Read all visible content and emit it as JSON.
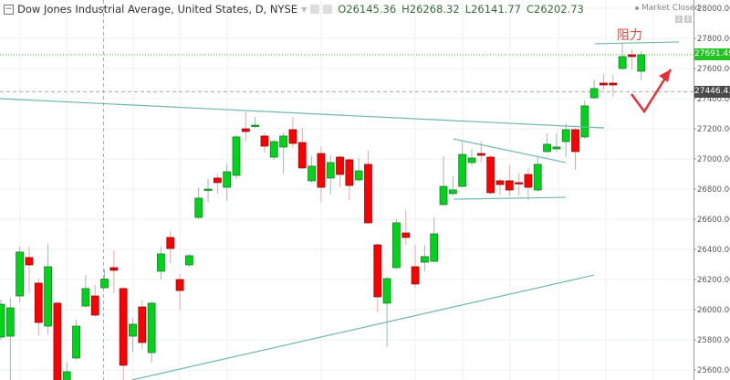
{
  "header": {
    "collapse_icon": "minus-square-icon",
    "title": "Dow Jones Industrial Average, United States, D, NYSE",
    "icons": [
      "eye-icon",
      "settings-icon"
    ],
    "ohlc": {
      "o": "O26145.36",
      "h": "H26268.32",
      "l": "L26141.77",
      "c": "C26202.73"
    }
  },
  "status": {
    "market": "Market Closed",
    "icons": [
      "arrow-down-icon",
      "arrows-vertical-icon"
    ]
  },
  "annotation": {
    "text": "阻力",
    "color": "#e04a4a"
  },
  "price_tags": {
    "last": {
      "text": "27691.49",
      "value": 27691.49,
      "color": "#22c322"
    },
    "crosshair": {
      "text": "27446.43",
      "value": 27446.43,
      "color": "#4a4a4a"
    }
  },
  "chart_data": {
    "type": "candlestick",
    "title": "Dow Jones Industrial Average, United States, D, NYSE",
    "ylim": [
      25550,
      28050
    ],
    "y_ticks": [
      "28000.00",
      "27800.00",
      "27600.00",
      "27400.00",
      "27200.00",
      "27000.00",
      "26800.00",
      "26600.00",
      "26400.00",
      "26200.00",
      "26000.00",
      "25800.00",
      "25600.00"
    ],
    "y_tick_values": [
      28000,
      27800,
      27600,
      27400,
      27200,
      27000,
      26800,
      26600,
      26400,
      26200,
      26000,
      25800,
      25600
    ],
    "grid": true,
    "colors": {
      "up": "#00d41a",
      "down": "#ff0000",
      "trendline": "#6fb8b0",
      "arrow": "#e8303a"
    },
    "candles": [
      [
        25818,
        26067,
        25800,
        26036
      ],
      [
        25824,
        26079,
        25534,
        26012
      ],
      [
        26091,
        26418,
        26049,
        26382
      ],
      [
        26346,
        26418,
        26109,
        26297
      ],
      [
        26176,
        26206,
        25830,
        25915
      ],
      [
        25891,
        26436,
        25836,
        26285
      ],
      [
        26043,
        26055,
        25449,
        25509
      ],
      [
        25509,
        25649,
        25479,
        25588
      ],
      [
        25679,
        25934,
        25667,
        25891
      ],
      [
        26024,
        26230,
        26012,
        26140
      ],
      [
        26091,
        26164,
        25952,
        25964
      ],
      [
        26145.36,
        26268.32,
        26141.77,
        26202.73
      ],
      [
        26279,
        26394,
        26109,
        26261
      ],
      [
        26140,
        26152,
        25534,
        25631
      ],
      [
        25824,
        25946,
        25721,
        25903
      ],
      [
        26018,
        26061,
        25740,
        25782
      ],
      [
        25715,
        26055,
        25649,
        26043
      ],
      [
        26255,
        26418,
        26200,
        26370
      ],
      [
        26479,
        26521,
        26309,
        26406
      ],
      [
        26200,
        26237,
        26000,
        26127
      ],
      [
        26297,
        26370,
        26285,
        26358
      ],
      [
        26612,
        26812,
        26600,
        26740
      ],
      [
        26794,
        26867,
        26715,
        26800
      ],
      [
        26873,
        26903,
        26770,
        26843
      ],
      [
        26812,
        26970,
        26721,
        26915
      ],
      [
        26891,
        27158,
        26867,
        27146
      ],
      [
        27200,
        27315,
        27115,
        27182
      ],
      [
        27218,
        27279,
        27206,
        27224
      ],
      [
        27152,
        27176,
        27042,
        27085
      ],
      [
        27012,
        27127,
        26994,
        27115
      ],
      [
        27079,
        27176,
        26903,
        27152
      ],
      [
        27194,
        27279,
        27073,
        27103
      ],
      [
        27109,
        27206,
        26933,
        26940
      ],
      [
        26855,
        27018,
        26843,
        26952
      ],
      [
        27036,
        27085,
        26715,
        26812
      ],
      [
        26873,
        27024,
        26764,
        26976
      ],
      [
        27012,
        27024,
        26812,
        26897
      ],
      [
        26994,
        27006,
        26727,
        26824
      ],
      [
        26861,
        27006,
        26849,
        26921
      ],
      [
        26964,
        27055,
        26570,
        26576
      ],
      [
        26430,
        26442,
        25982,
        26085
      ],
      [
        26043,
        26218,
        25752,
        26206
      ],
      [
        26279,
        26600,
        26267,
        26576
      ],
      [
        26509,
        26661,
        26430,
        26479
      ],
      [
        26285,
        26430,
        26146,
        26170
      ],
      [
        26315,
        26430,
        26255,
        26352
      ],
      [
        26321,
        26612,
        26315,
        26503
      ],
      [
        26697,
        27018,
        26691,
        26818
      ],
      [
        26770,
        26885,
        26758,
        26794
      ],
      [
        26818,
        27115,
        26812,
        27030
      ],
      [
        26976,
        27067,
        26952,
        27006
      ],
      [
        27036,
        27115,
        26976,
        27024
      ],
      [
        27012,
        27024,
        26764,
        26776
      ],
      [
        26855,
        26873,
        26758,
        26830
      ],
      [
        26855,
        26958,
        26752,
        26794
      ],
      [
        26843,
        26903,
        26758,
        26840
      ],
      [
        26897,
        26940,
        26727,
        26812
      ],
      [
        26794,
        27012,
        26782,
        26964
      ],
      [
        27049,
        27170,
        27042,
        27097
      ],
      [
        27067,
        27170,
        27049,
        27079
      ],
      [
        27115,
        27236,
        27012,
        27194
      ],
      [
        27194,
        27206,
        26927,
        27049
      ],
      [
        27146,
        27388,
        27134,
        27352
      ],
      [
        27406,
        27527,
        27400,
        27467
      ],
      [
        27503,
        27564,
        27461,
        27491
      ],
      [
        27503,
        27558,
        27412,
        27491
      ],
      [
        27600,
        27764,
        27594,
        27679
      ],
      [
        27691,
        27727,
        27594,
        27679
      ],
      [
        27582,
        27715,
        27521,
        27691.49
      ]
    ],
    "candle_fields": [
      "open",
      "high",
      "low",
      "close"
    ],
    "trendlines": [
      {
        "from": [
          0.9,
          27400
        ],
        "to": [
          65.05,
          27206
        ]
      },
      {
        "from": [
          14.95,
          25534
        ],
        "to": [
          63.99,
          26230
        ]
      },
      {
        "from": [
          49.06,
          27133
        ],
        "to": [
          60.98,
          26976
        ]
      },
      {
        "from": [
          49.06,
          26733
        ],
        "to": [
          60.98,
          26745
        ]
      },
      {
        "from": [
          64.08,
          27764
        ],
        "to": [
          73.0,
          27776
        ]
      }
    ],
    "arrow_path": [
      [
        67.96,
        27430
      ],
      [
        69.32,
        27315
      ],
      [
        72.13,
        27594
      ]
    ],
    "crosshair": {
      "bar": 12,
      "price": 27446.43
    }
  }
}
